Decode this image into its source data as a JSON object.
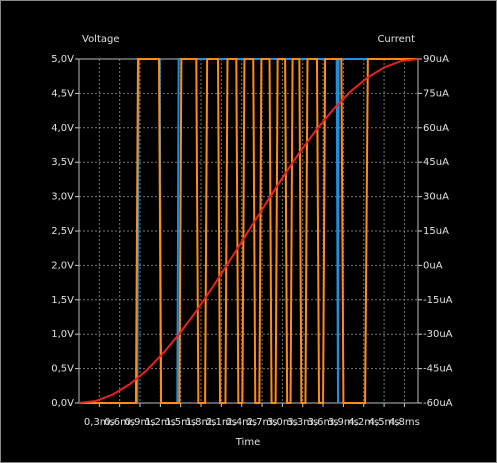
{
  "chart_data": {
    "type": "line",
    "y_label": "Voltage",
    "y2_label": "Current",
    "x_label": "Time",
    "xlim": [
      0,
      5
    ],
    "ylim": [
      0,
      5
    ],
    "y2lim": [
      -60,
      90
    ],
    "grid": true,
    "xticks": [
      {
        "value": 0.3,
        "label": "0,3ms"
      },
      {
        "value": 0.6,
        "label": "0,6ms"
      },
      {
        "value": 0.9,
        "label": "0,9ms"
      },
      {
        "value": 1.2,
        "label": "1,2ms"
      },
      {
        "value": 1.5,
        "label": "1,5ms"
      },
      {
        "value": 1.8,
        "label": "1,8ms"
      },
      {
        "value": 2.1,
        "label": "2,1ms"
      },
      {
        "value": 2.4,
        "label": "2,4ms"
      },
      {
        "value": 2.7,
        "label": "2,7ms"
      },
      {
        "value": 3.0,
        "label": "3,0ms"
      },
      {
        "value": 3.3,
        "label": "3,3ms"
      },
      {
        "value": 3.6,
        "label": "3,6ms"
      },
      {
        "value": 3.9,
        "label": "3,9ms"
      },
      {
        "value": 4.2,
        "label": "4,2ms"
      },
      {
        "value": 4.5,
        "label": "4,5ms"
      },
      {
        "value": 4.8,
        "label": "4,8ms"
      }
    ],
    "yticks": [
      {
        "value": 0,
        "label": "0,0V"
      },
      {
        "value": 0.5,
        "label": "0,5V"
      },
      {
        "value": 1.0,
        "label": "1,0V"
      },
      {
        "value": 1.5,
        "label": "1,5V"
      },
      {
        "value": 2.0,
        "label": "2,0V"
      },
      {
        "value": 2.5,
        "label": "2,5V"
      },
      {
        "value": 3.0,
        "label": "3,0V"
      },
      {
        "value": 3.5,
        "label": "3,5V"
      },
      {
        "value": 4.0,
        "label": "4,0V"
      },
      {
        "value": 4.5,
        "label": "4,5V"
      },
      {
        "value": 5.0,
        "label": "5,0V"
      }
    ],
    "y2ticks": [
      {
        "value": -60,
        "label": "-60uA"
      },
      {
        "value": -45,
        "label": "-45uA"
      },
      {
        "value": -30,
        "label": "-30uA"
      },
      {
        "value": -15,
        "label": "-15uA"
      },
      {
        "value": 0,
        "label": "0uA"
      },
      {
        "value": 15,
        "label": "15uA"
      },
      {
        "value": 30,
        "label": "30uA"
      },
      {
        "value": 45,
        "label": "45uA"
      },
      {
        "value": 60,
        "label": "60uA"
      },
      {
        "value": 75,
        "label": "75uA"
      },
      {
        "value": 90,
        "label": "90uA"
      }
    ],
    "series": [
      {
        "color": "#1f8fe0",
        "x": [
          0,
          0.86,
          0.88,
          1.19,
          1.21,
          1.45,
          1.47,
          3.8,
          3.82,
          3.83,
          5
        ],
        "values": [
          0,
          0,
          5,
          5,
          0,
          0,
          5,
          5,
          0,
          5,
          5
        ]
      },
      {
        "color": "#ff8c1a",
        "x": [
          0,
          0.84,
          0.87,
          1.18,
          1.21,
          1.48,
          1.51,
          1.73,
          1.76,
          1.86,
          1.89,
          2.05,
          2.08,
          2.16,
          2.19,
          2.32,
          2.35,
          2.41,
          2.44,
          2.57,
          2.6,
          2.66,
          2.69,
          2.81,
          2.84,
          2.9,
          2.93,
          3.04,
          3.07,
          3.12,
          3.15,
          3.25,
          3.28,
          3.34,
          3.37,
          3.51,
          3.54,
          3.6,
          3.63,
          3.87,
          3.9,
          4.22,
          4.26,
          5
        ],
        "values": [
          0,
          0,
          5,
          5,
          0,
          0,
          5,
          5,
          0,
          0,
          5,
          5,
          0,
          0,
          5,
          5,
          0,
          0,
          5,
          5,
          0,
          0,
          5,
          5,
          0,
          0,
          5,
          5,
          0,
          0,
          5,
          5,
          0,
          0,
          5,
          5,
          0,
          0,
          5,
          5,
          0,
          0,
          5,
          5
        ]
      },
      {
        "color": "#e8231e",
        "axis": "y2",
        "x": [
          0,
          0.25,
          0.5,
          0.75,
          1.0,
          1.25,
          1.5,
          1.75,
          2.0,
          2.25,
          2.5,
          2.75,
          3.0,
          3.25,
          3.5,
          3.75,
          4.0,
          4.25,
          4.5,
          4.75,
          5
        ],
        "values": [
          -60,
          -59.1,
          -56.3,
          -51.8,
          -45.7,
          -38.0,
          -29.1,
          -19.1,
          -8.2,
          3.3,
          15,
          26.7,
          38.2,
          49.1,
          59.1,
          68.0,
          75.7,
          81.8,
          86.3,
          89.1,
          90
        ]
      }
    ]
  }
}
